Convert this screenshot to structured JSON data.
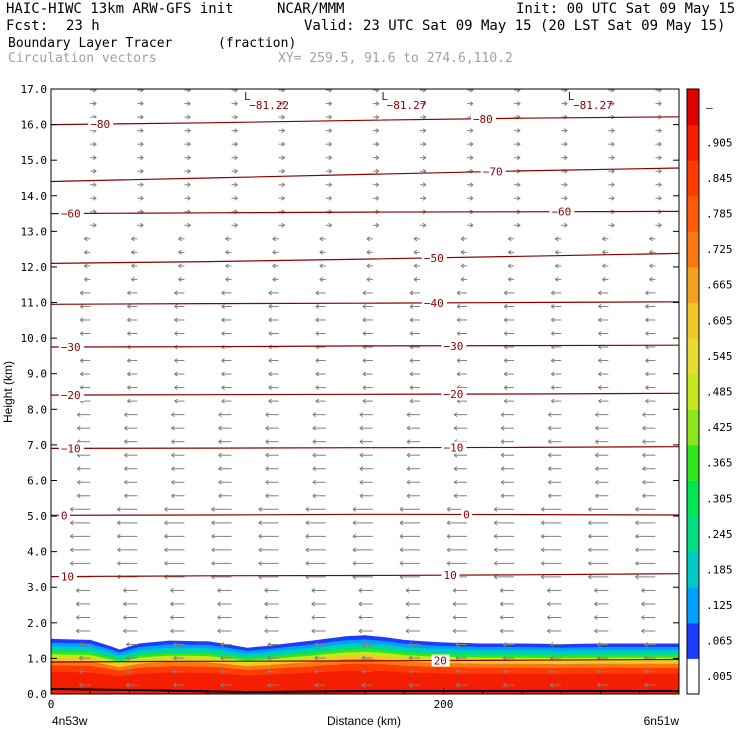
{
  "header": {
    "model": "HAIC-HIWC 13km ARW-GFS init",
    "org": "NCAR/MMM",
    "init": "Init: 00 UTC Sat 09 May 15",
    "fcst_label": "Fcst:",
    "fcst_value": "23 h",
    "valid": "Valid: 23 UTC Sat 09 May 15 (20 LST Sat 09 May 15)",
    "field": "Boundary Layer Tracer",
    "units": "(fraction)",
    "vectors": "Circulation vectors",
    "xy": "XY= 259.5, 91.6 to 274.6,110.2"
  },
  "chart_data": {
    "type": "heatmap",
    "ylabel": "Height (km)",
    "xlabel": "Distance (km)",
    "ylim": [
      0,
      17
    ],
    "xlim": [
      0,
      320
    ],
    "yticks": [
      "0.0",
      "1.0",
      "2.0",
      "3.0",
      "4.0",
      "5.0",
      "6.0",
      "7.0",
      "8.0",
      "9.0",
      "10.0",
      "11.0",
      "12.0",
      "13.0",
      "14.0",
      "15.0",
      "16.0",
      "17.0"
    ],
    "xticks": [
      {
        "value": 0,
        "label": "0"
      },
      {
        "value": 200,
        "label": "200"
      }
    ],
    "endpoint_left": "4n53w",
    "endpoint_right": "6n51w",
    "colorbar_labels": [
      ".005",
      ".065",
      ".125",
      ".185",
      ".245",
      ".305",
      ".365",
      ".425",
      ".485",
      ".545",
      ".605",
      ".665",
      ".725",
      ".785",
      ".845",
      ".905",
      "–"
    ],
    "colorbar_colors": [
      "#ffffff",
      "#1e3cff",
      "#00a0ff",
      "#00c8c8",
      "#00dc82",
      "#00e650",
      "#32e61e",
      "#8ce61e",
      "#c8e61e",
      "#e6dc32",
      "#f0c828",
      "#f5a01e",
      "#fa7814",
      "#ff5a0a",
      "#ff3c00",
      "#f51e00",
      "#e10000"
    ],
    "tracer_top": [
      [
        0,
        1.55
      ],
      [
        20,
        1.52
      ],
      [
        30,
        1.35
      ],
      [
        35,
        1.25
      ],
      [
        45,
        1.42
      ],
      [
        60,
        1.5
      ],
      [
        80,
        1.48
      ],
      [
        90,
        1.4
      ],
      [
        100,
        1.3
      ],
      [
        110,
        1.35
      ],
      [
        120,
        1.42
      ],
      [
        130,
        1.48
      ],
      [
        140,
        1.55
      ],
      [
        150,
        1.62
      ],
      [
        160,
        1.65
      ],
      [
        170,
        1.6
      ],
      [
        180,
        1.52
      ],
      [
        190,
        1.48
      ],
      [
        200,
        1.45
      ],
      [
        220,
        1.42
      ],
      [
        240,
        1.42
      ],
      [
        260,
        1.4
      ],
      [
        280,
        1.42
      ],
      [
        300,
        1.42
      ],
      [
        320,
        1.42
      ]
    ],
    "temperature_contours": [
      {
        "level": 20,
        "label": "20",
        "y": [
          0.9,
          0.92,
          0.93,
          0.95,
          0.97
        ],
        "label_x": [
          195
        ]
      },
      {
        "level": 10,
        "label": "10",
        "y": [
          3.3,
          3.32,
          3.33,
          3.35,
          3.38
        ],
        "label_x": [
          5,
          200
        ]
      },
      {
        "level": 0,
        "label": "0",
        "y": [
          5.02,
          5.03,
          5.05,
          5.04,
          5.03
        ],
        "label_x": [
          5,
          210
        ]
      },
      {
        "level": -10,
        "label": "−10",
        "y": [
          6.9,
          6.91,
          6.92,
          6.93,
          6.95
        ],
        "label_x": [
          5,
          200
        ]
      },
      {
        "level": -20,
        "label": "−20",
        "y": [
          8.4,
          8.41,
          8.42,
          8.43,
          8.45
        ],
        "label_x": [
          5,
          200
        ]
      },
      {
        "level": -30,
        "label": "−30",
        "y": [
          9.75,
          9.76,
          9.78,
          9.79,
          9.8
        ],
        "label_x": [
          5,
          200
        ]
      },
      {
        "level": -40,
        "label": "−40",
        "y": [
          10.95,
          10.97,
          10.98,
          11.0,
          11.02
        ],
        "label_x": [
          190
        ]
      },
      {
        "level": -50,
        "label": "−50",
        "y": [
          12.1,
          12.15,
          12.22,
          12.3,
          12.38
        ],
        "label_x": [
          190
        ]
      },
      {
        "level": -60,
        "label": "−60",
        "y": [
          13.5,
          13.52,
          13.54,
          13.55,
          13.56
        ],
        "label_x": [
          5,
          255
        ]
      },
      {
        "level": -70,
        "label": "−70",
        "y": [
          14.4,
          14.5,
          14.6,
          14.7,
          14.78
        ],
        "label_x": [
          220
        ]
      },
      {
        "level": -80,
        "label": "−80",
        "y": [
          16.0,
          16.05,
          16.12,
          16.18,
          16.22
        ],
        "label_x": [
          20,
          215
        ]
      }
    ],
    "minima": [
      {
        "symbol": "L",
        "value": "−81.22",
        "x": 100
      },
      {
        "symbol": "L",
        "value": "−81.27",
        "x": 170
      },
      {
        "symbol": "L",
        "value": "−81.27",
        "x": 265
      }
    ],
    "vector_grid": {
      "x_start": 20,
      "x_step": 24,
      "y_start": 0.25,
      "y_step": 0.38
    }
  }
}
